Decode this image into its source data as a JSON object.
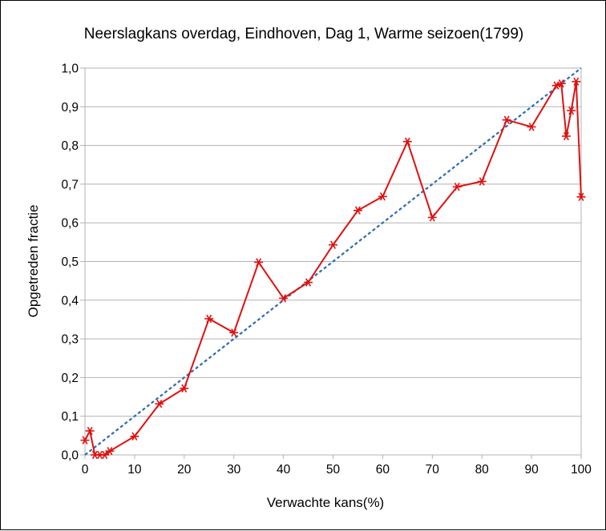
{
  "chart_data": {
    "type": "line",
    "title": "Neerslagkans overdag, Eindhoven, Dag 1, Warme seizoen(1799)",
    "xlabel": "Verwachte kans(%)",
    "ylabel": "Opgetreden fractie",
    "xlim": [
      0,
      100
    ],
    "ylim": [
      0,
      1
    ],
    "x_ticks": [
      "0",
      "10",
      "20",
      "30",
      "40",
      "50",
      "60",
      "70",
      "80",
      "90",
      "100"
    ],
    "y_ticks": [
      "0,0",
      "0,1",
      "0,2",
      "0,3",
      "0,4",
      "0,5",
      "0,6",
      "0,7",
      "0,8",
      "0,9",
      "1,0"
    ],
    "grid": "horizontal",
    "series": [
      {
        "style": "solid line with asterisk markers",
        "color": "#e01010",
        "points": [
          [
            0,
            0.038
          ],
          [
            1,
            0.062
          ],
          [
            2,
            0.0
          ],
          [
            3,
            0.0
          ],
          [
            4,
            0.0
          ],
          [
            5,
            0.01
          ],
          [
            10,
            0.048
          ],
          [
            15,
            0.132
          ],
          [
            20,
            0.172
          ],
          [
            25,
            0.352
          ],
          [
            30,
            0.316
          ],
          [
            35,
            0.498
          ],
          [
            40,
            0.405
          ],
          [
            45,
            0.446
          ],
          [
            50,
            0.543
          ],
          [
            55,
            0.632
          ],
          [
            60,
            0.668
          ],
          [
            65,
            0.81
          ],
          [
            70,
            0.614
          ],
          [
            75,
            0.693
          ],
          [
            80,
            0.707
          ],
          [
            85,
            0.866
          ],
          [
            90,
            0.848
          ],
          [
            95,
            0.955
          ],
          [
            96,
            0.96
          ],
          [
            97,
            0.824
          ],
          [
            98,
            0.89
          ],
          [
            99,
            0.965
          ],
          [
            100,
            0.667
          ]
        ]
      },
      {
        "style": "dotted diagonal reference",
        "color": "#2e6ab0",
        "points": [
          [
            0,
            0
          ],
          [
            100,
            1
          ]
        ]
      }
    ]
  }
}
